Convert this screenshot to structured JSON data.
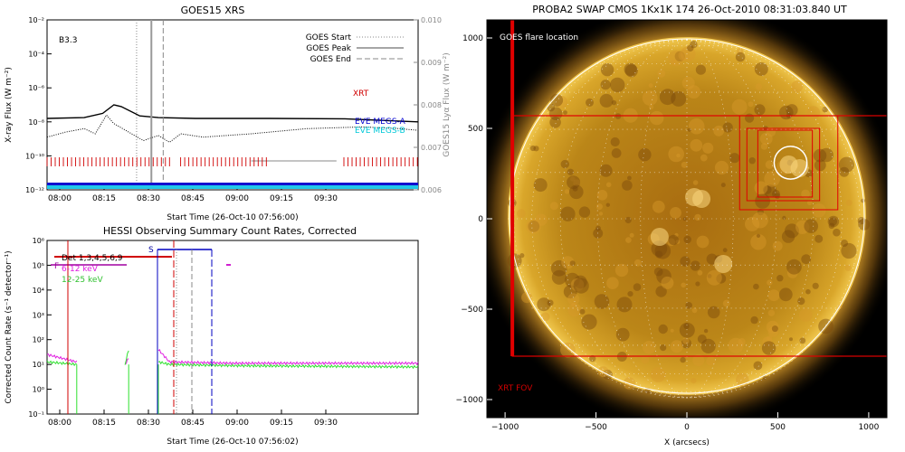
{
  "chart_data": [
    {
      "type": "line",
      "title": "GOES15 XRS",
      "xlabel": "Start Time (26-Oct-10 07:56:00)",
      "ylabel": "X-ray Flux (W m⁻²)",
      "y2label": "GOES15 Lyα Flux (W m⁻²)",
      "class_label": "B3.3",
      "x_ticks": [
        "08:00",
        "08:15",
        "08:30",
        "08:45",
        "09:00",
        "09:15",
        "09:30"
      ],
      "y_ticks": [
        "10⁻²",
        "10⁻⁴",
        "10⁻⁶",
        "10⁻⁸",
        "10⁻¹⁰",
        "10⁻¹²"
      ],
      "y2_ticks": [
        "0.010",
        "0.009",
        "0.008",
        "0.007",
        "0.006"
      ],
      "legend": [
        "GOES Start",
        "GOES Peak",
        "GOES End"
      ],
      "labels": {
        "xrt": "XRT",
        "eve_megs_a": "EVE MEGS-A",
        "eve_megs_b": "EVE MEGS-B"
      },
      "event_times": {
        "start": "08:26",
        "peak": "08:31",
        "end": "08:35"
      },
      "long_channel": [
        [
          0,
          -7.8
        ],
        [
          10,
          -7.75
        ],
        [
          15,
          -7.5
        ],
        [
          18,
          -7.0
        ],
        [
          20,
          -7.1
        ],
        [
          25,
          -7.65
        ],
        [
          30,
          -7.75
        ],
        [
          40,
          -7.8
        ],
        [
          60,
          -7.8
        ],
        [
          80,
          -7.82
        ],
        [
          100,
          -8.0
        ]
      ],
      "short_channel": [
        [
          0,
          -8.9
        ],
        [
          5,
          -8.6
        ],
        [
          10,
          -8.4
        ],
        [
          13,
          -8.7
        ],
        [
          16,
          -7.6
        ],
        [
          18,
          -8.1
        ],
        [
          22,
          -8.6
        ],
        [
          26,
          -9.1
        ],
        [
          30,
          -8.8
        ],
        [
          33,
          -9.2
        ],
        [
          36,
          -8.7
        ],
        [
          42,
          -8.9
        ],
        [
          55,
          -8.7
        ],
        [
          70,
          -8.4
        ],
        [
          85,
          -8.3
        ],
        [
          95,
          -8.4
        ],
        [
          100,
          -8.5
        ]
      ]
    },
    {
      "type": "line",
      "title": "HESSI Observing Summary Count Rates, Corrected",
      "xlabel": "Start Time (26-Oct-10 07:56:02)",
      "ylabel": "Corrected Count Rate (s⁻¹ detector⁻¹)",
      "x_ticks": [
        "08:00",
        "08:15",
        "08:30",
        "08:45",
        "09:00",
        "09:15",
        "09:30"
      ],
      "y_ticks": [
        "10⁶",
        "10⁵",
        "10⁴",
        "10³",
        "10²",
        "10¹",
        "10⁰",
        "10⁻¹"
      ],
      "markers": {
        "flag_f": "F",
        "flag_s": "S"
      },
      "detectors_label": "Det 1,3,4,5,6,9",
      "series": [
        {
          "name": "6-12 keV",
          "color": "#e020e0",
          "segments": [
            [
              [
                0,
                1.4
              ],
              [
                8,
                1.1
              ]
            ],
            [
              [
                21,
                1.0
              ],
              [
                22,
                1.25
              ]
            ],
            [
              [
                30,
                1.6
              ],
              [
                33,
                1.1
              ],
              [
                50,
                1.05
              ],
              [
                100,
                1.05
              ]
            ]
          ]
        },
        {
          "name": "12-25 keV",
          "color": "#30e030",
          "segments": [
            [
              [
                0,
                1.1
              ],
              [
                8,
                1.0
              ]
            ],
            [
              [
                21,
                1.0
              ],
              [
                22,
                1.6
              ]
            ],
            [
              [
                30,
                1.1
              ],
              [
                33,
                1.0
              ],
              [
                50,
                0.95
              ],
              [
                100,
                0.9
              ]
            ]
          ]
        }
      ]
    },
    {
      "type": "image",
      "title": "PROBA2 SWAP CMOS 1Kx1K 174 26-Oct-2010 08:31:03.840 UT",
      "xlabel": "X (arcsecs)",
      "x_ticks": [
        "−1000",
        "−500",
        "0",
        "500",
        "1000"
      ],
      "y_ticks": [
        "1000",
        "500",
        "0",
        "−500",
        "−1000"
      ],
      "xlim": [
        -1100,
        1100
      ],
      "ylim": [
        -1100,
        1100
      ],
      "flare_label": "GOES flare location",
      "flare_location": [
        570,
        310
      ],
      "flare_radius": 90,
      "fov_label": "XRT FOV",
      "xrt_fov": [
        [
          -960,
          -760
        ],
        [
          1110,
          570
        ]
      ],
      "boxes": [
        [
          [
            290,
            50
          ],
          [
            830,
            570
          ]
        ],
        [
          [
            330,
            100
          ],
          [
            730,
            500
          ]
        ],
        [
          [
            390,
            120
          ],
          [
            690,
            490
          ]
        ]
      ],
      "solar_radius": 985
    }
  ]
}
